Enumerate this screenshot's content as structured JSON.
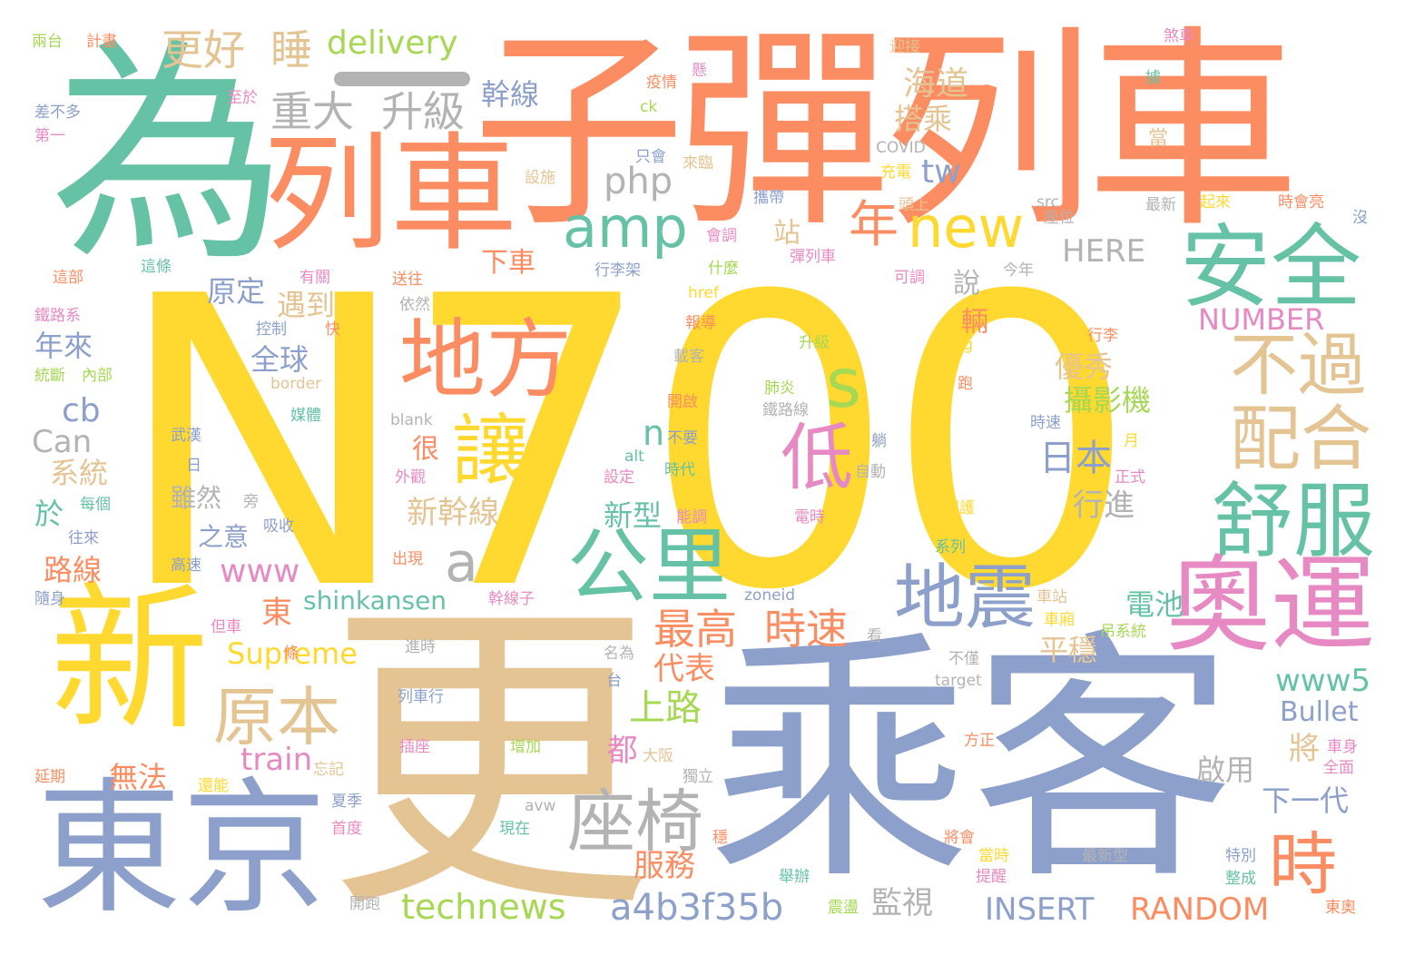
{
  "palette": {
    "yellow": "#ffd92f",
    "tan": "#e5c494",
    "green": "#66c2a5",
    "orange": "#fc8d62",
    "blue": "#8da0cb",
    "pink": "#e78ac3",
    "lime": "#a6d854",
    "gray": "#b3b3b3"
  },
  "words": [
    {
      "text": "N700",
      "color": "yellow"
    },
    {
      "text": "乘客",
      "color": "blue"
    },
    {
      "text": "更",
      "color": "tan"
    },
    {
      "text": "子彈列車",
      "color": "orange"
    },
    {
      "text": "為",
      "color": "green"
    },
    {
      "text": "列車",
      "color": "orange"
    },
    {
      "text": "新",
      "color": "yellow"
    },
    {
      "text": "東京",
      "color": "blue"
    },
    {
      "text": "奧運",
      "color": "pink"
    },
    {
      "text": "安全",
      "color": "green"
    },
    {
      "text": "舒服",
      "color": "green"
    },
    {
      "text": "地方",
      "color": "orange"
    },
    {
      "text": "配合",
      "color": "tan"
    },
    {
      "text": "不過",
      "color": "tan"
    },
    {
      "text": "公里",
      "color": "green"
    },
    {
      "text": "地震",
      "color": "blue"
    },
    {
      "text": "座椅",
      "color": "gray"
    },
    {
      "text": "原本",
      "color": "tan"
    },
    {
      "text": "amp",
      "color": "green"
    },
    {
      "text": "new",
      "color": "yellow"
    },
    {
      "text": "讓",
      "color": "yellow"
    },
    {
      "text": "低",
      "color": "pink"
    },
    {
      "text": "s",
      "color": "lime"
    },
    {
      "text": "時",
      "color": "orange"
    },
    {
      "text": "年",
      "color": "orange"
    },
    {
      "text": "a",
      "color": "gray"
    },
    {
      "text": "時速",
      "color": "orange"
    },
    {
      "text": "最高",
      "color": "orange"
    },
    {
      "text": "重大",
      "color": "gray"
    },
    {
      "text": "升級",
      "color": "gray"
    },
    {
      "text": "更好",
      "color": "tan"
    },
    {
      "text": "睡",
      "color": "tan"
    },
    {
      "text": "delivery",
      "color": "lime"
    },
    {
      "text": "幹線",
      "color": "blue"
    },
    {
      "text": "海道",
      "color": "tan"
    },
    {
      "text": "搭乘",
      "color": "tan"
    },
    {
      "text": "php",
      "color": "gray"
    },
    {
      "text": "tw",
      "color": "blue"
    },
    {
      "text": "站",
      "color": "tan"
    },
    {
      "text": "下車",
      "color": "orange"
    },
    {
      "text": "HERE",
      "color": "gray"
    },
    {
      "text": "說",
      "color": "gray"
    },
    {
      "text": "原定",
      "color": "blue"
    },
    {
      "text": "遇到",
      "color": "tan"
    },
    {
      "text": "年來",
      "color": "blue"
    },
    {
      "text": "全球",
      "color": "blue"
    },
    {
      "text": "cb",
      "color": "blue"
    },
    {
      "text": "Can",
      "color": "gray"
    },
    {
      "text": "系統",
      "color": "tan"
    },
    {
      "text": "於",
      "color": "green"
    },
    {
      "text": "很",
      "color": "orange"
    },
    {
      "text": "新幹線",
      "color": "tan"
    },
    {
      "text": "新型",
      "color": "green"
    },
    {
      "text": "雖然",
      "color": "gray"
    },
    {
      "text": "之意",
      "color": "blue"
    },
    {
      "text": "www",
      "color": "pink"
    },
    {
      "text": "路線",
      "color": "orange"
    },
    {
      "text": "東",
      "color": "orange"
    },
    {
      "text": "shinkansen",
      "color": "green"
    },
    {
      "text": "Supreme",
      "color": "yellow"
    },
    {
      "text": "代表",
      "color": "orange"
    },
    {
      "text": "上路",
      "color": "lime"
    },
    {
      "text": "train",
      "color": "pink"
    },
    {
      "text": "無法",
      "color": "orange"
    },
    {
      "text": "都",
      "color": "pink"
    },
    {
      "text": "technews",
      "color": "lime"
    },
    {
      "text": "a4b3f35b",
      "color": "blue"
    },
    {
      "text": "服務",
      "color": "orange"
    },
    {
      "text": "監視",
      "color": "gray"
    },
    {
      "text": "INSERT",
      "color": "blue"
    },
    {
      "text": "RANDOM",
      "color": "orange"
    },
    {
      "text": "NUMBER",
      "color": "pink"
    },
    {
      "text": "優秀",
      "color": "tan"
    },
    {
      "text": "攝影機",
      "color": "lime"
    },
    {
      "text": "日本",
      "color": "blue"
    },
    {
      "text": "行進",
      "color": "gray"
    },
    {
      "text": "電池",
      "color": "green"
    },
    {
      "text": "平穩",
      "color": "tan"
    },
    {
      "text": "www5",
      "color": "green"
    },
    {
      "text": "Bullet",
      "color": "blue"
    },
    {
      "text": "將",
      "color": "tan"
    },
    {
      "text": "啟用",
      "color": "gray"
    },
    {
      "text": "下一代",
      "color": "blue"
    },
    {
      "text": "n",
      "color": "green"
    },
    {
      "text": "輛",
      "color": "orange"
    },
    {
      "text": "兩台",
      "color": "lime"
    },
    {
      "text": "計畫",
      "color": "orange"
    },
    {
      "text": "至於",
      "color": "pink"
    },
    {
      "text": "差不多",
      "color": "blue"
    },
    {
      "text": "第一",
      "color": "pink"
    },
    {
      "text": "最新",
      "color": "gray"
    },
    {
      "text": "起來",
      "color": "yellow"
    },
    {
      "text": "時會亮",
      "color": "orange"
    },
    {
      "text": "沒",
      "color": "blue"
    },
    {
      "text": "煞車",
      "color": "pink"
    },
    {
      "text": "迎接",
      "color": "tan"
    },
    {
      "text": "疫情",
      "color": "orange"
    },
    {
      "text": "ck",
      "color": "lime"
    },
    {
      "text": "只會",
      "color": "blue"
    },
    {
      "text": "來臨",
      "color": "tan"
    },
    {
      "text": "COVID",
      "color": "gray"
    },
    {
      "text": "充電",
      "color": "yellow"
    },
    {
      "text": "設施",
      "color": "tan"
    },
    {
      "text": "當",
      "color": "tan"
    },
    {
      "text": "src",
      "color": "gray"
    },
    {
      "text": "座位",
      "color": "gray"
    },
    {
      "text": "頭上",
      "color": "tan"
    },
    {
      "text": "攜帶",
      "color": "blue"
    },
    {
      "text": "會調",
      "color": "pink"
    },
    {
      "text": "彈列車",
      "color": "pink"
    },
    {
      "text": "可調",
      "color": "pink"
    },
    {
      "text": "行李架",
      "color": "blue"
    },
    {
      "text": "什麼",
      "color": "lime"
    },
    {
      "text": "今年",
      "color": "gray"
    },
    {
      "text": "這部",
      "color": "orange"
    },
    {
      "text": "這條",
      "color": "green"
    },
    {
      "text": "有關",
      "color": "pink"
    },
    {
      "text": "送往",
      "color": "orange"
    },
    {
      "text": "href",
      "color": "yellow"
    },
    {
      "text": "依然",
      "color": "gray"
    },
    {
      "text": "控制",
      "color": "blue"
    },
    {
      "text": "快",
      "color": "orange"
    },
    {
      "text": "報導",
      "color": "orange"
    },
    {
      "text": "鐵路系",
      "color": "pink"
    },
    {
      "text": "img",
      "color": "yellow"
    },
    {
      "text": "行李",
      "color": "orange"
    },
    {
      "text": "載客",
      "color": "gray"
    },
    {
      "text": "升級",
      "color": "lime"
    },
    {
      "text": "統斷",
      "color": "lime"
    },
    {
      "text": "內部",
      "color": "lime"
    },
    {
      "text": "border",
      "color": "tan"
    },
    {
      "text": "肺炎",
      "color": "lime"
    },
    {
      "text": "鐵路線",
      "color": "gray"
    },
    {
      "text": "媒體",
      "color": "green"
    },
    {
      "text": "開啟",
      "color": "orange"
    },
    {
      "text": "blank",
      "color": "gray"
    },
    {
      "text": "時速",
      "color": "blue"
    },
    {
      "text": "武漢",
      "color": "blue"
    },
    {
      "text": "不要",
      "color": "blue"
    },
    {
      "text": "alt",
      "color": "green"
    },
    {
      "text": "外觀",
      "color": "pink"
    },
    {
      "text": "設定",
      "color": "pink"
    },
    {
      "text": "時代",
      "color": "green"
    },
    {
      "text": "正式",
      "color": "pink"
    },
    {
      "text": "自動",
      "color": "gray"
    },
    {
      "text": "每個",
      "color": "green"
    },
    {
      "text": "旁",
      "color": "gray"
    },
    {
      "text": "往來",
      "color": "blue"
    },
    {
      "text": "吸收",
      "color": "blue"
    },
    {
      "text": "能調",
      "color": "pink"
    },
    {
      "text": "電時",
      "color": "pink"
    },
    {
      "text": "保護",
      "color": "yellow"
    },
    {
      "text": "系列",
      "color": "green"
    },
    {
      "text": "高速",
      "color": "blue"
    },
    {
      "text": "出現",
      "color": "orange"
    },
    {
      "text": "隨身",
      "color": "blue"
    },
    {
      "text": "幹線子",
      "color": "pink"
    },
    {
      "text": "zoneid",
      "color": "blue"
    },
    {
      "text": "車站",
      "color": "tan"
    },
    {
      "text": "車廂",
      "color": "yellow"
    },
    {
      "text": "吊系統",
      "color": "lime"
    },
    {
      "text": "但車",
      "color": "pink"
    },
    {
      "text": "進時",
      "color": "gray"
    },
    {
      "text": "名為",
      "color": "gray"
    },
    {
      "text": "看",
      "color": "gray"
    },
    {
      "text": "不僅",
      "color": "gray"
    },
    {
      "text": "台",
      "color": "blue"
    },
    {
      "text": "target",
      "color": "gray"
    },
    {
      "text": "列車行",
      "color": "blue"
    },
    {
      "text": "方正",
      "color": "orange"
    },
    {
      "text": "插座",
      "color": "pink"
    },
    {
      "text": "增加",
      "color": "lime"
    },
    {
      "text": "大阪",
      "color": "tan"
    },
    {
      "text": "車身",
      "color": "pink"
    },
    {
      "text": "全面",
      "color": "pink"
    },
    {
      "text": "延期",
      "color": "orange"
    },
    {
      "text": "還能",
      "color": "yellow"
    },
    {
      "text": "忘記",
      "color": "tan"
    },
    {
      "text": "獨立",
      "color": "gray"
    },
    {
      "text": "夏季",
      "color": "blue"
    },
    {
      "text": "avw",
      "color": "gray"
    },
    {
      "text": "首度",
      "color": "pink"
    },
    {
      "text": "現在",
      "color": "green"
    },
    {
      "text": "將會",
      "color": "orange"
    },
    {
      "text": "當時",
      "color": "yellow"
    },
    {
      "text": "提醒",
      "color": "pink"
    },
    {
      "text": "最新型",
      "color": "gray"
    },
    {
      "text": "特別",
      "color": "blue"
    },
    {
      "text": "整成",
      "color": "green"
    },
    {
      "text": "舉辦",
      "color": "green"
    },
    {
      "text": "震盪",
      "color": "lime"
    },
    {
      "text": "開跑",
      "color": "gray"
    },
    {
      "text": "東奧",
      "color": "orange"
    },
    {
      "text": "日",
      "color": "blue"
    },
    {
      "text": "月",
      "color": "yellow"
    },
    {
      "text": "跑",
      "color": "orange"
    },
    {
      "text": "條",
      "color": "orange"
    },
    {
      "text": "穩",
      "color": "orange"
    },
    {
      "text": "躺",
      "color": "blue"
    },
    {
      "text": "據",
      "color": "green"
    },
    {
      "text": "懸",
      "color": "pink"
    }
  ]
}
